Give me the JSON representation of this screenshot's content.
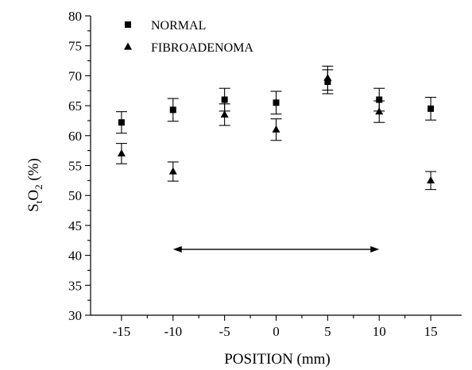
{
  "chart_data": {
    "type": "scatter",
    "title": "",
    "xlabel": "POSITION (mm)",
    "ylabel": {
      "main": "S",
      "sub1": "t",
      "mid": "O",
      "sub2": "2",
      "tail": " (%)"
    },
    "xlim": [
      -18,
      18
    ],
    "ylim": [
      30,
      80
    ],
    "xticks": [
      -15,
      -10,
      -5,
      0,
      5,
      10,
      15
    ],
    "yticks": [
      30,
      35,
      40,
      45,
      50,
      55,
      60,
      65,
      70,
      75,
      80
    ],
    "legend_position": "top-left",
    "series": [
      {
        "name": "NORMAL",
        "marker": "square",
        "x": [
          -15,
          -10,
          -5,
          0,
          5,
          10,
          15
        ],
        "y": [
          62.2,
          64.3,
          66.0,
          65.5,
          69.0,
          66.0,
          64.5
        ],
        "err": [
          1.8,
          1.9,
          1.9,
          1.9,
          2.0,
          1.9,
          1.9
        ]
      },
      {
        "name": "FIBROADENOMA",
        "marker": "triangle",
        "x": [
          -15,
          -10,
          -5,
          0,
          5,
          10,
          15
        ],
        "y": [
          57.0,
          54.0,
          63.5,
          61.0,
          69.6,
          64.0,
          52.5
        ],
        "err": [
          1.7,
          1.6,
          1.8,
          1.8,
          2.0,
          1.8,
          1.5
        ]
      }
    ],
    "annotations": [
      {
        "type": "double-arrow",
        "x_from": -10,
        "x_to": 10,
        "y": 41
      }
    ]
  }
}
